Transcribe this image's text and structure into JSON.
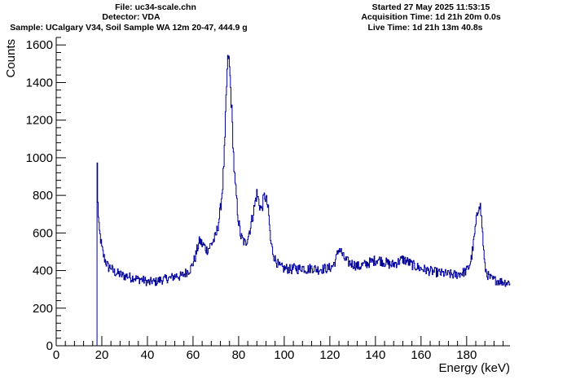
{
  "header": {
    "file": "File: uc34-scale.chn",
    "detector": "Detector: VDA",
    "sample": "Sample: UCalgary V34, Soil Sample WA 12m 20-47, 444.9 g",
    "started": "Started 27 May 2025 11:53:15",
    "acquisition": "Acquisition Time: 1d 21h 20m 0.0s",
    "live": "Live Time: 1d 21h 13m 40.8s"
  },
  "colors": {
    "series": "#000099",
    "axis": "#000000",
    "background": "#ffffff"
  },
  "chart_data": {
    "type": "line",
    "style": "step histogram",
    "title": "",
    "xlabel": "Energy (keV)",
    "ylabel": "Counts",
    "xlim": [
      0,
      199
    ],
    "ylim": [
      0,
      1640
    ],
    "xticks": [
      0,
      20,
      40,
      60,
      80,
      100,
      120,
      140,
      160,
      180
    ],
    "yticks": [
      0,
      200,
      400,
      600,
      800,
      1000,
      1200,
      1400,
      1600
    ],
    "grid": false,
    "legend": "none",
    "series": [
      {
        "x": [
          17.9,
          18.1,
          18.3,
          18.5,
          18.8,
          19.2,
          19.6,
          20,
          21,
          22,
          23,
          24,
          25,
          26,
          27,
          28,
          29,
          30,
          31,
          32,
          33,
          34,
          35,
          36,
          37,
          38,
          39,
          40,
          41,
          42,
          43,
          44,
          45,
          46,
          47,
          48,
          49,
          50,
          51,
          52,
          53,
          54,
          55,
          56,
          57,
          58,
          59,
          60,
          61,
          62,
          63,
          64,
          65,
          66,
          67,
          68,
          69,
          70,
          71,
          72,
          73,
          74,
          74.5,
          75,
          75.5,
          76,
          76.3,
          76.6,
          77,
          77.5,
          78,
          78.5,
          79,
          79.5,
          80,
          80.5,
          81,
          82,
          83,
          84,
          85,
          86,
          87,
          87.5,
          88,
          89,
          90,
          91,
          91.5,
          92,
          92.5,
          93,
          93.5,
          94,
          95,
          96,
          97,
          98,
          99,
          100,
          101,
          102,
          103,
          104,
          105,
          106,
          107,
          108,
          109,
          110,
          111,
          112,
          113,
          114,
          115,
          116,
          117,
          118,
          119,
          120,
          121,
          122,
          123,
          124,
          125,
          126,
          127,
          128,
          129,
          130,
          131,
          132,
          133,
          134,
          135,
          136,
          137,
          138,
          139,
          140,
          141,
          142,
          143,
          144,
          145,
          146,
          147,
          148,
          149,
          150,
          151,
          152,
          153,
          154,
          155,
          156,
          157,
          158,
          159,
          160,
          161,
          162,
          163,
          164,
          165,
          166,
          167,
          168,
          169,
          170,
          171,
          172,
          173,
          174,
          175,
          176,
          177,
          178,
          179,
          180,
          181,
          182,
          183,
          184,
          185,
          185.5,
          186,
          186.5,
          187,
          187.5,
          188,
          189,
          190,
          191,
          192,
          193,
          194,
          195,
          196,
          197,
          198,
          199
        ],
        "y": [
          1060,
          900,
          760,
          680,
          620,
          590,
          560,
          520,
          470,
          440,
          415,
          420,
          395,
          390,
          385,
          380,
          375,
          370,
          372,
          368,
          360,
          365,
          358,
          352,
          355,
          350,
          345,
          340,
          335,
          345,
          338,
          342,
          348,
          350,
          352,
          355,
          360,
          358,
          365,
          370,
          375,
          368,
          372,
          380,
          390,
          400,
          410,
          440,
          470,
          520,
          560,
          540,
          530,
          510,
          520,
          540,
          560,
          580,
          640,
          720,
          850,
          1080,
          1300,
          1450,
          1550,
          1480,
          1420,
          1350,
          1250,
          1100,
          950,
          850,
          800,
          720,
          660,
          620,
          580,
          560,
          540,
          580,
          620,
          680,
          740,
          780,
          810,
          760,
          720,
          780,
          800,
          780,
          760,
          720,
          650,
          560,
          500,
          460,
          440,
          420,
          415,
          410,
          412,
          408,
          405,
          410,
          415,
          408,
          412,
          418,
          410,
          405,
          410,
          415,
          412,
          408,
          405,
          410,
          408,
          412,
          410,
          415,
          420,
          440,
          470,
          520,
          500,
          470,
          455,
          445,
          440,
          435,
          430,
          425,
          420,
          428,
          430,
          435,
          440,
          445,
          450,
          455,
          460,
          455,
          450,
          445,
          440,
          435,
          430,
          435,
          440,
          445,
          455,
          460,
          455,
          448,
          440,
          432,
          425,
          420,
          415,
          410,
          408,
          404,
          400,
          398,
          395,
          392,
          390,
          388,
          385,
          384,
          382,
          380,
          380,
          378,
          378,
          380,
          385,
          388,
          392,
          400,
          420,
          460,
          540,
          640,
          720,
          770,
          740,
          680,
          600,
          500,
          420,
          380,
          365,
          355,
          350,
          348,
          345,
          342,
          340,
          338,
          335,
          340
        ]
      }
    ]
  }
}
